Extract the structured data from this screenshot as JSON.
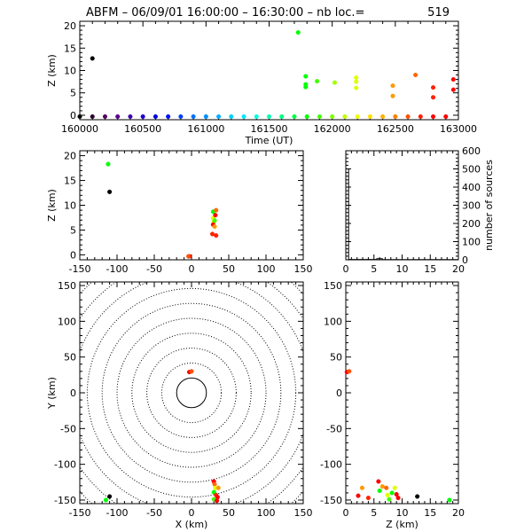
{
  "title": "ABFM – 06/09/01 16:00:00 – 16:30:00 – nb loc.=",
  "count": "519",
  "chart_data": [
    {
      "id": "time-height",
      "type": "scatter",
      "xlabel": "Time (UT)",
      "ylabel": "Z (km)",
      "xlim": [
        160000,
        163000
      ],
      "ylim": [
        -1,
        21
      ],
      "xticks": [
        160000,
        160500,
        161000,
        161500,
        162000,
        162500,
        163000
      ],
      "yticks": [
        0,
        5,
        10,
        15,
        20
      ],
      "points": [
        {
          "x": 160100,
          "y": 12.7,
          "color": "#000000"
        },
        {
          "x": 161730,
          "y": 18.5,
          "color": "#00ff00"
        },
        {
          "x": 161790,
          "y": 8.7,
          "color": "#00ff00"
        },
        {
          "x": 161790,
          "y": 6.9,
          "color": "#00ff00"
        },
        {
          "x": 161790,
          "y": 6.3,
          "color": "#00ff00"
        },
        {
          "x": 161880,
          "y": 7.6,
          "color": "#40ff00"
        },
        {
          "x": 162020,
          "y": 7.3,
          "color": "#a0ff00"
        },
        {
          "x": 162190,
          "y": 8.4,
          "color": "#e0ff00"
        },
        {
          "x": 162190,
          "y": 7.5,
          "color": "#e0ff00"
        },
        {
          "x": 162190,
          "y": 6.1,
          "color": "#e0ff00"
        },
        {
          "x": 162480,
          "y": 6.6,
          "color": "#ff9900"
        },
        {
          "x": 162480,
          "y": 4.3,
          "color": "#ff9900"
        },
        {
          "x": 162660,
          "y": 9.0,
          "color": "#ff6600"
        },
        {
          "x": 162800,
          "y": 6.2,
          "color": "#ff2200"
        },
        {
          "x": 162800,
          "y": 4.0,
          "color": "#ff2200"
        },
        {
          "x": 162960,
          "y": 8.0,
          "color": "#ff0000"
        },
        {
          "x": 162960,
          "y": 5.7,
          "color": "#ff0000"
        },
        {
          "x": 160000,
          "y": -0.3,
          "color": "#000000"
        },
        {
          "x": 160100,
          "y": -0.3,
          "color": "#300030"
        },
        {
          "x": 160200,
          "y": -0.3,
          "color": "#500060"
        },
        {
          "x": 160300,
          "y": -0.3,
          "color": "#5a0090"
        },
        {
          "x": 160400,
          "y": -0.3,
          "color": "#4000b0"
        },
        {
          "x": 160500,
          "y": -0.3,
          "color": "#2000d0"
        },
        {
          "x": 160600,
          "y": -0.3,
          "color": "#0000e0"
        },
        {
          "x": 160700,
          "y": -0.3,
          "color": "#0010ff"
        },
        {
          "x": 160800,
          "y": -0.3,
          "color": "#0040ff"
        },
        {
          "x": 160900,
          "y": -0.3,
          "color": "#0070ff"
        },
        {
          "x": 161000,
          "y": -0.3,
          "color": "#0090ff"
        },
        {
          "x": 161100,
          "y": -0.3,
          "color": "#00b0ff"
        },
        {
          "x": 161200,
          "y": -0.3,
          "color": "#00d0ff"
        },
        {
          "x": 161300,
          "y": -0.3,
          "color": "#00e8ff"
        },
        {
          "x": 161400,
          "y": -0.3,
          "color": "#00ffe0"
        },
        {
          "x": 161500,
          "y": -0.3,
          "color": "#00ffb0"
        },
        {
          "x": 161600,
          "y": -0.3,
          "color": "#00ff80"
        },
        {
          "x": 161700,
          "y": -0.3,
          "color": "#00ff40"
        },
        {
          "x": 161800,
          "y": -0.3,
          "color": "#00ff00"
        },
        {
          "x": 161900,
          "y": -0.3,
          "color": "#40ff00"
        },
        {
          "x": 162000,
          "y": -0.3,
          "color": "#80ff00"
        },
        {
          "x": 162100,
          "y": -0.3,
          "color": "#c0ff00"
        },
        {
          "x": 162200,
          "y": -0.3,
          "color": "#f0ff00"
        },
        {
          "x": 162300,
          "y": -0.3,
          "color": "#ffe000"
        },
        {
          "x": 162400,
          "y": -0.3,
          "color": "#ffb000"
        },
        {
          "x": 162500,
          "y": -0.3,
          "color": "#ff8000"
        },
        {
          "x": 162600,
          "y": -0.3,
          "color": "#ff5000"
        },
        {
          "x": 162700,
          "y": -0.3,
          "color": "#ff2000"
        },
        {
          "x": 162800,
          "y": -0.3,
          "color": "#ff0000"
        },
        {
          "x": 162900,
          "y": -0.3,
          "color": "#ff0000"
        }
      ]
    },
    {
      "id": "x-height",
      "type": "scatter",
      "xlabel": "",
      "ylabel": "Z (km)",
      "xlim": [
        -150,
        150
      ],
      "ylim": [
        -1,
        21
      ],
      "xticks": [
        -150,
        -100,
        -50,
        0,
        50,
        100,
        150
      ],
      "yticks": [
        0,
        5,
        10,
        15,
        20
      ],
      "points": [
        {
          "x": -112,
          "y": 18.3,
          "color": "#00ff00"
        },
        {
          "x": -110,
          "y": 12.7,
          "color": "#000000"
        },
        {
          "x": 29,
          "y": 8.7,
          "color": "#00ff00"
        },
        {
          "x": 29,
          "y": 7.4,
          "color": "#e0ff00"
        },
        {
          "x": 30,
          "y": 6.6,
          "color": "#e0ff00"
        },
        {
          "x": 31,
          "y": 6.9,
          "color": "#40ff00"
        },
        {
          "x": 29,
          "y": 6.1,
          "color": "#ff0000"
        },
        {
          "x": 31,
          "y": 5.7,
          "color": "#ff9900"
        },
        {
          "x": 28,
          "y": 4.2,
          "color": "#ff2200"
        },
        {
          "x": 33,
          "y": 9.0,
          "color": "#ff6600"
        },
        {
          "x": 32,
          "y": 8.0,
          "color": "#ff0000"
        },
        {
          "x": 33,
          "y": 3.9,
          "color": "#ff2200"
        },
        {
          "x": -3,
          "y": -0.3,
          "color": "#ff0000"
        },
        {
          "x": -4,
          "y": -0.3,
          "color": "#ff5000"
        }
      ]
    },
    {
      "id": "height-histogram",
      "type": "bar",
      "xlabel": "",
      "ylabel": "number of sources",
      "xlim": [
        0,
        20
      ],
      "ylim": [
        0,
        600
      ],
      "xticks": [
        0,
        5,
        10,
        15,
        20
      ],
      "yticks": [
        0,
        100,
        200,
        300,
        400,
        500,
        600
      ],
      "bins": [
        {
          "x0": 0,
          "x1": 0.5,
          "value": 500
        },
        {
          "x0": 0.5,
          "x1": 5.5,
          "value": 2
        },
        {
          "x0": 5.5,
          "x1": 6.5,
          "value": 6
        },
        {
          "x0": 6.5,
          "x1": 20,
          "value": 1
        }
      ]
    },
    {
      "id": "plan-view",
      "type": "scatter",
      "xlabel": "X (km)",
      "ylabel": "Y (km)",
      "xlim": [
        -150,
        150
      ],
      "ylim": [
        -155,
        155
      ],
      "xticks": [
        -150,
        -100,
        -50,
        0,
        50,
        100,
        150
      ],
      "yticks": [
        -150,
        -100,
        -50,
        0,
        50,
        100,
        150
      ],
      "range_rings_km": [
        20,
        40,
        60,
        80,
        100,
        120,
        140,
        160,
        180,
        200
      ],
      "points": [
        {
          "x": -3,
          "y": 29,
          "color": "#ff0000"
        },
        {
          "x": 0,
          "y": 30,
          "color": "#ff5000"
        },
        {
          "x": -110,
          "y": -145,
          "color": "#000000"
        },
        {
          "x": -115,
          "y": -150,
          "color": "#00ff00"
        },
        {
          "x": 30,
          "y": -124,
          "color": "#ff0000"
        },
        {
          "x": 31,
          "y": -128,
          "color": "#ff6600"
        },
        {
          "x": 32,
          "y": -133,
          "color": "#e0ff00"
        },
        {
          "x": 36,
          "y": -133,
          "color": "#ff9900"
        },
        {
          "x": 30,
          "y": -139,
          "color": "#00ff00"
        },
        {
          "x": 33,
          "y": -143,
          "color": "#ff2200"
        },
        {
          "x": 35,
          "y": -146,
          "color": "#ff0000"
        },
        {
          "x": 30,
          "y": -149,
          "color": "#40ff00"
        },
        {
          "x": 34,
          "y": -151,
          "color": "#ff0000"
        }
      ]
    },
    {
      "id": "height-y",
      "type": "scatter",
      "xlabel": "Z (km)",
      "ylabel": "",
      "xlim": [
        0,
        20
      ],
      "ylim": [
        -155,
        155
      ],
      "xticks": [
        0,
        5,
        10,
        15,
        20
      ],
      "yticks": [
        -150,
        -100,
        -50,
        0,
        50,
        100,
        150
      ],
      "points": [
        {
          "x": 0.2,
          "y": 29,
          "color": "#ff0000"
        },
        {
          "x": 0.6,
          "y": 30,
          "color": "#ff5000"
        },
        {
          "x": 12.7,
          "y": -145,
          "color": "#000000"
        },
        {
          "x": 18.4,
          "y": -150,
          "color": "#00ff00"
        },
        {
          "x": 2.2,
          "y": -144,
          "color": "#ff0000"
        },
        {
          "x": 2.9,
          "y": -133,
          "color": "#ff9900"
        },
        {
          "x": 4.0,
          "y": -147,
          "color": "#ff2200"
        },
        {
          "x": 5.8,
          "y": -124,
          "color": "#ff0000"
        },
        {
          "x": 6.0,
          "y": -137,
          "color": "#00ff00"
        },
        {
          "x": 6.5,
          "y": -131,
          "color": "#ff9900"
        },
        {
          "x": 7.2,
          "y": -133,
          "color": "#ff6600"
        },
        {
          "x": 7.4,
          "y": -143,
          "color": "#e0ff00"
        },
        {
          "x": 7.7,
          "y": -149,
          "color": "#40ff00"
        },
        {
          "x": 8.2,
          "y": -140,
          "color": "#00ff00"
        },
        {
          "x": 8.7,
          "y": -133,
          "color": "#e0ff00"
        },
        {
          "x": 9.0,
          "y": -142,
          "color": "#ff0000"
        },
        {
          "x": 9.3,
          "y": -147,
          "color": "#ff0000"
        }
      ]
    }
  ]
}
